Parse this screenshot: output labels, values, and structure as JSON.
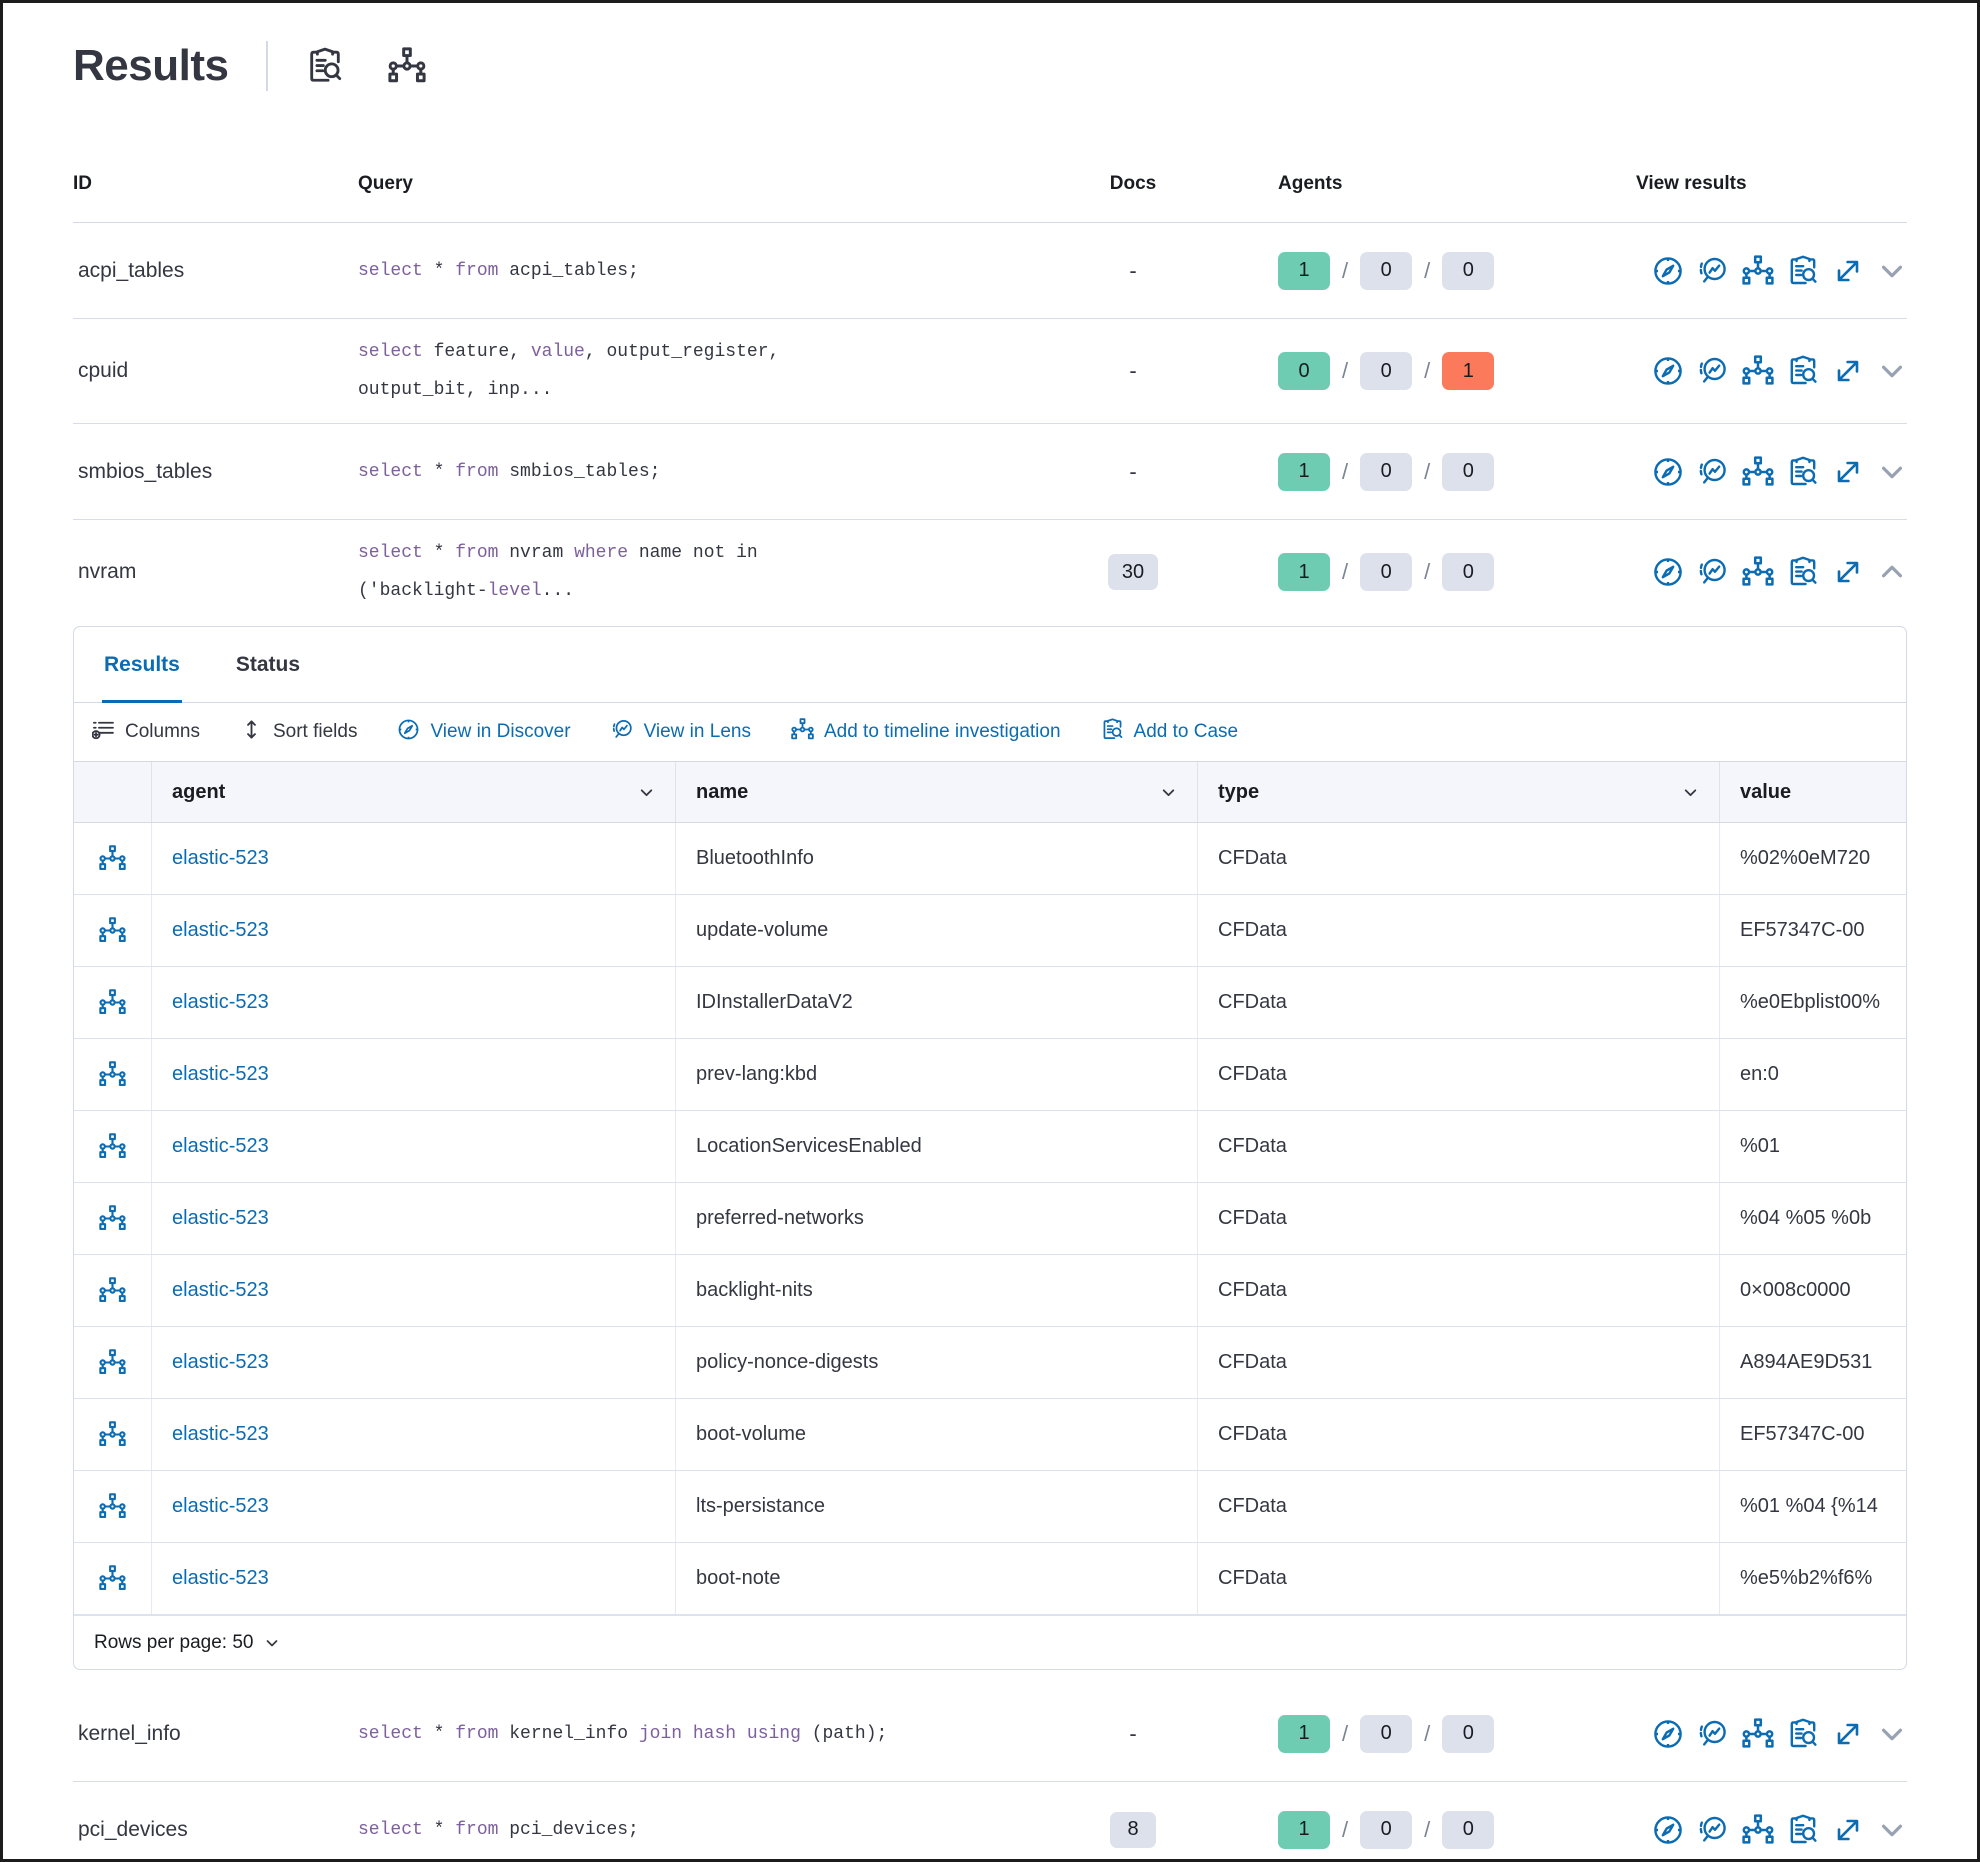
{
  "page": {
    "title": "Results"
  },
  "colors": {
    "accent_blue": "#0b6cb3",
    "keyword_purple": "#7c609c",
    "badge_success": "#6DCCB1",
    "badge_neutral": "#DCE1EC",
    "badge_danger": "#FB7A5B",
    "border": "#D3DAE6"
  },
  "header_icons": [
    "clipboard-search-icon",
    "network-topology-icon"
  ],
  "queries_table": {
    "columns": [
      "ID",
      "Query",
      "Docs",
      "Agents",
      "View results"
    ],
    "rows": [
      {
        "id": "acpi_tables",
        "query_lines": [
          [
            {
              "t": "select",
              "k": 1
            },
            {
              "t": " * ",
              "k": 0
            },
            {
              "t": "from",
              "k": 1
            },
            {
              "t": " acpi_tables;",
              "k": 0
            }
          ]
        ],
        "docs": {
          "text": "-",
          "badge": false
        },
        "agents": [
          {
            "count": "1",
            "variant": "success"
          },
          {
            "count": "0",
            "variant": "neutral"
          },
          {
            "count": "0",
            "variant": "neutral"
          }
        ],
        "expanded": false
      },
      {
        "id": "cpuid",
        "query_lines": [
          [
            {
              "t": "select",
              "k": 1
            },
            {
              "t": " feature, ",
              "k": 0
            },
            {
              "t": "value",
              "k": 1
            },
            {
              "t": ", output_register,",
              "k": 0
            }
          ],
          [
            {
              "t": "output_bit, inp...",
              "k": 0
            }
          ]
        ],
        "docs": {
          "text": "-",
          "badge": false
        },
        "agents": [
          {
            "count": "0",
            "variant": "success"
          },
          {
            "count": "0",
            "variant": "neutral"
          },
          {
            "count": "1",
            "variant": "danger"
          }
        ],
        "expanded": false
      },
      {
        "id": "smbios_tables",
        "query_lines": [
          [
            {
              "t": "select",
              "k": 1
            },
            {
              "t": " * ",
              "k": 0
            },
            {
              "t": "from",
              "k": 1
            },
            {
              "t": " smbios_tables;",
              "k": 0
            }
          ]
        ],
        "docs": {
          "text": "-",
          "badge": false
        },
        "agents": [
          {
            "count": "1",
            "variant": "success"
          },
          {
            "count": "0",
            "variant": "neutral"
          },
          {
            "count": "0",
            "variant": "neutral"
          }
        ],
        "expanded": false
      },
      {
        "id": "nvram",
        "query_lines": [
          [
            {
              "t": "select",
              "k": 1
            },
            {
              "t": " * ",
              "k": 0
            },
            {
              "t": "from",
              "k": 1
            },
            {
              "t": " nvram ",
              "k": 0
            },
            {
              "t": "where",
              "k": 1
            },
            {
              "t": " name not in",
              "k": 0
            }
          ],
          [
            {
              "t": "('backlight-",
              "k": 0
            },
            {
              "t": "level",
              "k": 1
            },
            {
              "t": "...",
              "k": 0
            }
          ]
        ],
        "docs": {
          "text": "30",
          "badge": true
        },
        "agents": [
          {
            "count": "1",
            "variant": "success"
          },
          {
            "count": "0",
            "variant": "neutral"
          },
          {
            "count": "0",
            "variant": "neutral"
          }
        ],
        "expanded": true
      },
      {
        "id": "kernel_info",
        "query_lines": [
          [
            {
              "t": "select",
              "k": 1
            },
            {
              "t": " * ",
              "k": 0
            },
            {
              "t": "from",
              "k": 1
            },
            {
              "t": " kernel_info ",
              "k": 0
            },
            {
              "t": "join hash using",
              "k": 1
            },
            {
              "t": " (path);",
              "k": 0
            }
          ]
        ],
        "docs": {
          "text": "-",
          "badge": false
        },
        "agents": [
          {
            "count": "1",
            "variant": "success"
          },
          {
            "count": "0",
            "variant": "neutral"
          },
          {
            "count": "0",
            "variant": "neutral"
          }
        ],
        "expanded": false
      },
      {
        "id": "pci_devices",
        "query_lines": [
          [
            {
              "t": "select",
              "k": 1
            },
            {
              "t": " * ",
              "k": 0
            },
            {
              "t": "from",
              "k": 1
            },
            {
              "t": " pci_devices;",
              "k": 0
            }
          ]
        ],
        "docs": {
          "text": "8",
          "badge": true
        },
        "agents": [
          {
            "count": "1",
            "variant": "success"
          },
          {
            "count": "0",
            "variant": "neutral"
          },
          {
            "count": "0",
            "variant": "neutral"
          }
        ],
        "expanded": false
      }
    ]
  },
  "results_panel": {
    "tabs": [
      {
        "label": "Results",
        "active": true
      },
      {
        "label": "Status",
        "active": false
      }
    ],
    "toolbar": [
      {
        "label": "Columns",
        "icon": "columns-icon",
        "blue": false
      },
      {
        "label": "Sort fields",
        "icon": "sort-fields-icon",
        "blue": false
      },
      {
        "label": "View in Discover",
        "icon": "discover-compass-icon",
        "blue": true
      },
      {
        "label": "View in Lens",
        "icon": "lens-icon",
        "blue": true
      },
      {
        "label": "Add to timeline investigation",
        "icon": "timeline-network-icon",
        "blue": true
      },
      {
        "label": "Add to Case",
        "icon": "case-clipboard-icon",
        "blue": true
      }
    ],
    "grid": {
      "columns": [
        "agent",
        "name",
        "type",
        "value"
      ],
      "rows": [
        {
          "agent": "elastic-523",
          "name": "BluetoothInfo",
          "type": "CFData",
          "value": "%02%0eM720"
        },
        {
          "agent": "elastic-523",
          "name": "update-volume",
          "type": "CFData",
          "value": "EF57347C-00"
        },
        {
          "agent": "elastic-523",
          "name": "IDInstallerDataV2",
          "type": "CFData",
          "value": "%e0Ebplist00%"
        },
        {
          "agent": "elastic-523",
          "name": "prev-lang:kbd",
          "type": "CFData",
          "value": "en:0"
        },
        {
          "agent": "elastic-523",
          "name": "LocationServicesEnabled",
          "type": "CFData",
          "value": "%01"
        },
        {
          "agent": "elastic-523",
          "name": "preferred-networks",
          "type": "CFData",
          "value": "%04 %05 %0b"
        },
        {
          "agent": "elastic-523",
          "name": "backlight-nits",
          "type": "CFData",
          "value": "0×008c0000"
        },
        {
          "agent": "elastic-523",
          "name": "policy-nonce-digests",
          "type": "CFData",
          "value": "A894AE9D531"
        },
        {
          "agent": "elastic-523",
          "name": "boot-volume",
          "type": "CFData",
          "value": "EF57347C-00"
        },
        {
          "agent": "elastic-523",
          "name": "lts-persistance",
          "type": "CFData",
          "value": "%01 %04 {%14"
        },
        {
          "agent": "elastic-523",
          "name": "boot-note",
          "type": "CFData",
          "value": "%e5%b2%f6%"
        }
      ]
    },
    "footer": {
      "rows_per_page_label": "Rows per page: 50"
    }
  }
}
